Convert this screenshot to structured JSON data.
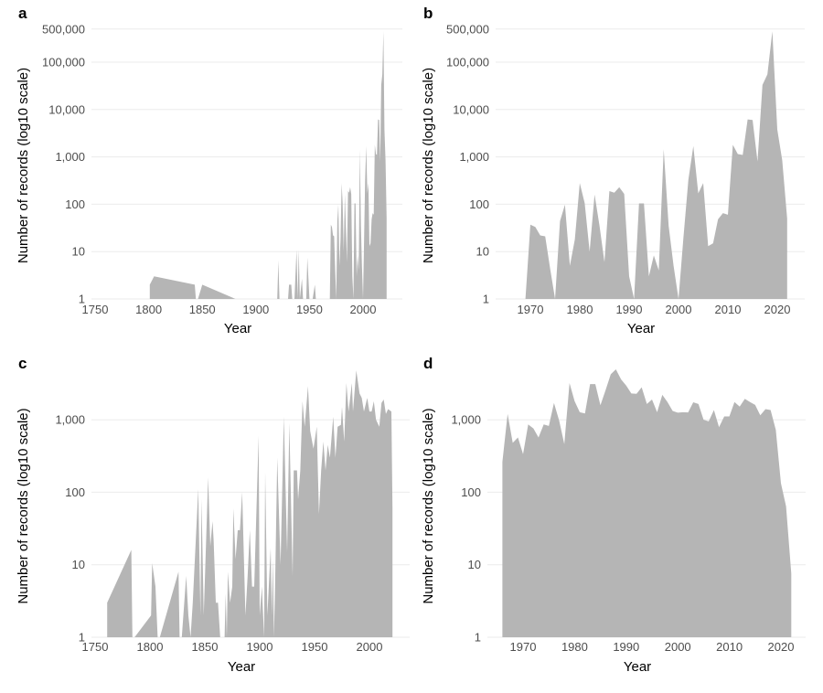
{
  "chart_data": [
    {
      "panel_label": "a",
      "type": "area",
      "xlabel": "Year",
      "ylabel": "Number of records (log10 scale)",
      "y_scale": "log10",
      "xlim": [
        1750,
        2025
      ],
      "ylim": [
        1,
        500000
      ],
      "x_ticks": [
        "1750",
        "1800",
        "1850",
        "1900",
        "1950",
        "2000"
      ],
      "y_ticks": [
        "1",
        "10",
        "100",
        "1,000",
        "10,000",
        "100,000",
        "500,000"
      ],
      "grid": true,
      "color": "#b5b5b5",
      "points": [
        [
          1801,
          2
        ],
        [
          1805,
          3
        ],
        [
          1843,
          2
        ],
        [
          1844,
          1
        ],
        [
          1846,
          1
        ],
        [
          1850,
          2
        ],
        [
          1881,
          1
        ],
        [
          1920,
          1
        ],
        [
          1921,
          6.5
        ],
        [
          1922,
          1
        ],
        [
          1930,
          1
        ],
        [
          1931,
          2
        ],
        [
          1933,
          2
        ],
        [
          1934,
          1
        ],
        [
          1936,
          1
        ],
        [
          1938,
          11
        ],
        [
          1939,
          1
        ],
        [
          1940,
          11
        ],
        [
          1941,
          1
        ],
        [
          1943,
          2.7
        ],
        [
          1944,
          1
        ],
        [
          1947,
          1
        ],
        [
          1948,
          7.5
        ],
        [
          1950,
          1
        ],
        [
          1953,
          1
        ],
        [
          1955,
          2
        ],
        [
          1956,
          1
        ],
        [
          1968,
          1
        ],
        [
          1969,
          1
        ],
        [
          1970,
          37
        ],
        [
          1971,
          33
        ],
        [
          1972,
          22
        ],
        [
          1973,
          21
        ],
        [
          1974,
          4.4
        ],
        [
          1975,
          1
        ],
        [
          1976,
          44
        ],
        [
          1977,
          98
        ],
        [
          1978,
          5
        ],
        [
          1979,
          18
        ],
        [
          1980,
          280
        ],
        [
          1981,
          105
        ],
        [
          1982,
          10
        ],
        [
          1983,
          160
        ],
        [
          1984,
          35
        ],
        [
          1985,
          6
        ],
        [
          1986,
          190
        ],
        [
          1987,
          175
        ],
        [
          1988,
          230
        ],
        [
          1989,
          165
        ],
        [
          1990,
          3
        ],
        [
          1991,
          1
        ],
        [
          1992,
          104
        ],
        [
          1993,
          104
        ],
        [
          1994,
          3
        ],
        [
          1995,
          8.3
        ],
        [
          1996,
          4
        ],
        [
          1997,
          1450
        ],
        [
          1998,
          35
        ],
        [
          1999,
          5
        ],
        [
          2000,
          1
        ],
        [
          2001,
          20
        ],
        [
          2002,
          330
        ],
        [
          2003,
          1700
        ],
        [
          2004,
          170
        ],
        [
          2005,
          280
        ],
        [
          2006,
          13
        ],
        [
          2007,
          15
        ],
        [
          2008,
          48
        ],
        [
          2009,
          65
        ],
        [
          2010,
          60
        ],
        [
          2011,
          1800
        ],
        [
          2012,
          1150
        ],
        [
          2013,
          1100
        ],
        [
          2014,
          6200
        ],
        [
          2015,
          6000
        ],
        [
          2016,
          800
        ],
        [
          2017,
          33000
        ],
        [
          2018,
          55000
        ],
        [
          2019,
          450000
        ],
        [
          2020,
          3800
        ],
        [
          2021,
          850
        ],
        [
          2022,
          50
        ]
      ]
    },
    {
      "panel_label": "b",
      "type": "area",
      "xlabel": "Year",
      "ylabel": "Number of records (log10 scale)",
      "y_scale": "log10",
      "xlim": [
        1963,
        2025
      ],
      "ylim": [
        1,
        500000
      ],
      "x_ticks": [
        "1970",
        "1980",
        "1990",
        "2000",
        "2010",
        "2020"
      ],
      "y_ticks": [
        "1",
        "10",
        "100",
        "1,000",
        "10,000",
        "100,000",
        "500,000"
      ],
      "grid": true,
      "color": "#b5b5b5",
      "points": [
        [
          1969,
          1
        ],
        [
          1970,
          37
        ],
        [
          1971,
          33
        ],
        [
          1972,
          22
        ],
        [
          1973,
          21
        ],
        [
          1974,
          4.4
        ],
        [
          1975,
          1
        ],
        [
          1976,
          44
        ],
        [
          1977,
          98
        ],
        [
          1978,
          5
        ],
        [
          1979,
          18
        ],
        [
          1980,
          280
        ],
        [
          1981,
          105
        ],
        [
          1982,
          10
        ],
        [
          1983,
          160
        ],
        [
          1984,
          35
        ],
        [
          1985,
          6
        ],
        [
          1986,
          190
        ],
        [
          1987,
          175
        ],
        [
          1988,
          230
        ],
        [
          1989,
          165
        ],
        [
          1990,
          3
        ],
        [
          1991,
          1
        ],
        [
          1992,
          104
        ],
        [
          1993,
          104
        ],
        [
          1994,
          3
        ],
        [
          1995,
          8.3
        ],
        [
          1996,
          4
        ],
        [
          1997,
          1450
        ],
        [
          1998,
          35
        ],
        [
          1999,
          5
        ],
        [
          2000,
          1
        ],
        [
          2001,
          20
        ],
        [
          2002,
          330
        ],
        [
          2003,
          1700
        ],
        [
          2004,
          170
        ],
        [
          2005,
          280
        ],
        [
          2006,
          13
        ],
        [
          2007,
          15
        ],
        [
          2008,
          48
        ],
        [
          2009,
          65
        ],
        [
          2010,
          60
        ],
        [
          2011,
          1800
        ],
        [
          2012,
          1150
        ],
        [
          2013,
          1100
        ],
        [
          2014,
          6200
        ],
        [
          2015,
          6000
        ],
        [
          2016,
          800
        ],
        [
          2017,
          33000
        ],
        [
          2018,
          55000
        ],
        [
          2019,
          450000
        ],
        [
          2020,
          3800
        ],
        [
          2021,
          850
        ],
        [
          2022,
          50
        ]
      ]
    },
    {
      "panel_label": "c",
      "type": "area",
      "xlabel": "Year",
      "ylabel": "Number of records (log10 scale)",
      "y_scale": "log10",
      "xlim": [
        1750,
        2025
      ],
      "ylim": [
        1,
        5000
      ],
      "x_ticks": [
        "1750",
        "1800",
        "1850",
        "1900",
        "1950",
        "2000"
      ],
      "y_ticks": [
        "1",
        "10",
        "100",
        "1,000"
      ],
      "grid": true,
      "color": "#b5b5b5",
      "points": [
        [
          1761,
          3
        ],
        [
          1783,
          16
        ],
        [
          1784,
          1
        ],
        [
          1786,
          1
        ],
        [
          1801,
          2
        ],
        [
          1802,
          10.5
        ],
        [
          1805,
          5
        ],
        [
          1807,
          1
        ],
        [
          1809,
          1
        ],
        [
          1826,
          8
        ],
        [
          1827,
          1
        ],
        [
          1829,
          1
        ],
        [
          1833,
          7
        ],
        [
          1835,
          2
        ],
        [
          1837,
          1
        ],
        [
          1839,
          3
        ],
        [
          1844,
          110
        ],
        [
          1846,
          2
        ],
        [
          1847,
          80
        ],
        [
          1849,
          2
        ],
        [
          1853,
          160
        ],
        [
          1855,
          18
        ],
        [
          1857,
          40
        ],
        [
          1858,
          22
        ],
        [
          1860,
          3
        ],
        [
          1862,
          3
        ],
        [
          1864,
          1
        ],
        [
          1868,
          1
        ],
        [
          1869,
          4
        ],
        [
          1870,
          1
        ],
        [
          1871,
          8
        ],
        [
          1873,
          3
        ],
        [
          1875,
          5
        ],
        [
          1876,
          60
        ],
        [
          1878,
          12
        ],
        [
          1880,
          30
        ],
        [
          1882,
          30
        ],
        [
          1884,
          100
        ],
        [
          1887,
          2
        ],
        [
          1889,
          7
        ],
        [
          1891,
          30
        ],
        [
          1893,
          5
        ],
        [
          1895,
          5
        ],
        [
          1899,
          600
        ],
        [
          1900,
          2
        ],
        [
          1902,
          5
        ],
        [
          1904,
          1
        ],
        [
          1905,
          190
        ],
        [
          1907,
          2
        ],
        [
          1910,
          17
        ],
        [
          1911,
          2
        ],
        [
          1912,
          12
        ],
        [
          1913,
          1
        ],
        [
          1914,
          5
        ],
        [
          1916,
          300
        ],
        [
          1919,
          10
        ],
        [
          1922,
          1100
        ],
        [
          1925,
          15
        ],
        [
          1927,
          900
        ],
        [
          1930,
          7
        ],
        [
          1931,
          200
        ],
        [
          1934,
          200
        ],
        [
          1935,
          80
        ],
        [
          1937,
          200
        ],
        [
          1939,
          1800
        ],
        [
          1941,
          800
        ],
        [
          1944,
          2900
        ],
        [
          1946,
          700
        ],
        [
          1949,
          400
        ],
        [
          1952,
          800
        ],
        [
          1954,
          50
        ],
        [
          1956,
          200
        ],
        [
          1958,
          500
        ],
        [
          1960,
          200
        ],
        [
          1962,
          450
        ],
        [
          1964,
          300
        ],
        [
          1967,
          1100
        ],
        [
          1969,
          300
        ],
        [
          1971,
          800
        ],
        [
          1974,
          850
        ],
        [
          1975,
          1500
        ],
        [
          1977,
          500
        ],
        [
          1979,
          3200
        ],
        [
          1981,
          1300
        ],
        [
          1984,
          3200
        ],
        [
          1985,
          1300
        ],
        [
          1988,
          4800
        ],
        [
          1991,
          2300
        ],
        [
          1993,
          2000
        ],
        [
          1995,
          1300
        ],
        [
          1998,
          2000
        ],
        [
          2000,
          1300
        ],
        [
          2002,
          1300
        ],
        [
          2004,
          1800
        ],
        [
          2006,
          1000
        ],
        [
          2009,
          800
        ],
        [
          2011,
          1700
        ],
        [
          2013,
          1900
        ],
        [
          2015,
          1200
        ],
        [
          2017,
          1400
        ],
        [
          2020,
          1300
        ],
        [
          2021,
          60
        ]
      ]
    },
    {
      "panel_label": "d",
      "type": "area",
      "xlabel": "Year",
      "ylabel": "Number of records (log10 scale)",
      "y_scale": "log10",
      "xlim": [
        1963,
        2025
      ],
      "ylim": [
        1,
        5000
      ],
      "x_ticks": [
        "1970",
        "1980",
        "1990",
        "2000",
        "2010",
        "2020"
      ],
      "y_ticks": [
        "1",
        "10",
        "100",
        "1,000"
      ],
      "grid": true,
      "color": "#b5b5b5",
      "points": [
        [
          1966,
          263
        ],
        [
          1967,
          1200
        ],
        [
          1968,
          480
        ],
        [
          1969,
          570
        ],
        [
          1970,
          335
        ],
        [
          1971,
          860
        ],
        [
          1972,
          760
        ],
        [
          1973,
          570
        ],
        [
          1974,
          860
        ],
        [
          1975,
          820
        ],
        [
          1976,
          1700
        ],
        [
          1977,
          970
        ],
        [
          1978,
          460
        ],
        [
          1979,
          3200
        ],
        [
          1980,
          1800
        ],
        [
          1981,
          1270
        ],
        [
          1982,
          1220
        ],
        [
          1983,
          3100
        ],
        [
          1984,
          3100
        ],
        [
          1985,
          1580
        ],
        [
          1986,
          2550
        ],
        [
          1987,
          4230
        ],
        [
          1988,
          4950
        ],
        [
          1989,
          3600
        ],
        [
          1990,
          2950
        ],
        [
          1991,
          2300
        ],
        [
          1992,
          2280
        ],
        [
          1993,
          2800
        ],
        [
          1994,
          1650
        ],
        [
          1995,
          1900
        ],
        [
          1996,
          1270
        ],
        [
          1997,
          2200
        ],
        [
          1998,
          1750
        ],
        [
          1999,
          1320
        ],
        [
          2000,
          1250
        ],
        [
          2001,
          1270
        ],
        [
          2002,
          1260
        ],
        [
          2003,
          1740
        ],
        [
          2004,
          1650
        ],
        [
          2005,
          1000
        ],
        [
          2006,
          950
        ],
        [
          2007,
          1360
        ],
        [
          2008,
          790
        ],
        [
          2009,
          1110
        ],
        [
          2010,
          1110
        ],
        [
          2011,
          1750
        ],
        [
          2012,
          1520
        ],
        [
          2013,
          1940
        ],
        [
          2014,
          1750
        ],
        [
          2015,
          1600
        ],
        [
          2016,
          1150
        ],
        [
          2017,
          1400
        ],
        [
          2018,
          1360
        ],
        [
          2019,
          725
        ],
        [
          2020,
          133
        ],
        [
          2021,
          64
        ],
        [
          2022,
          7.6
        ]
      ]
    }
  ]
}
